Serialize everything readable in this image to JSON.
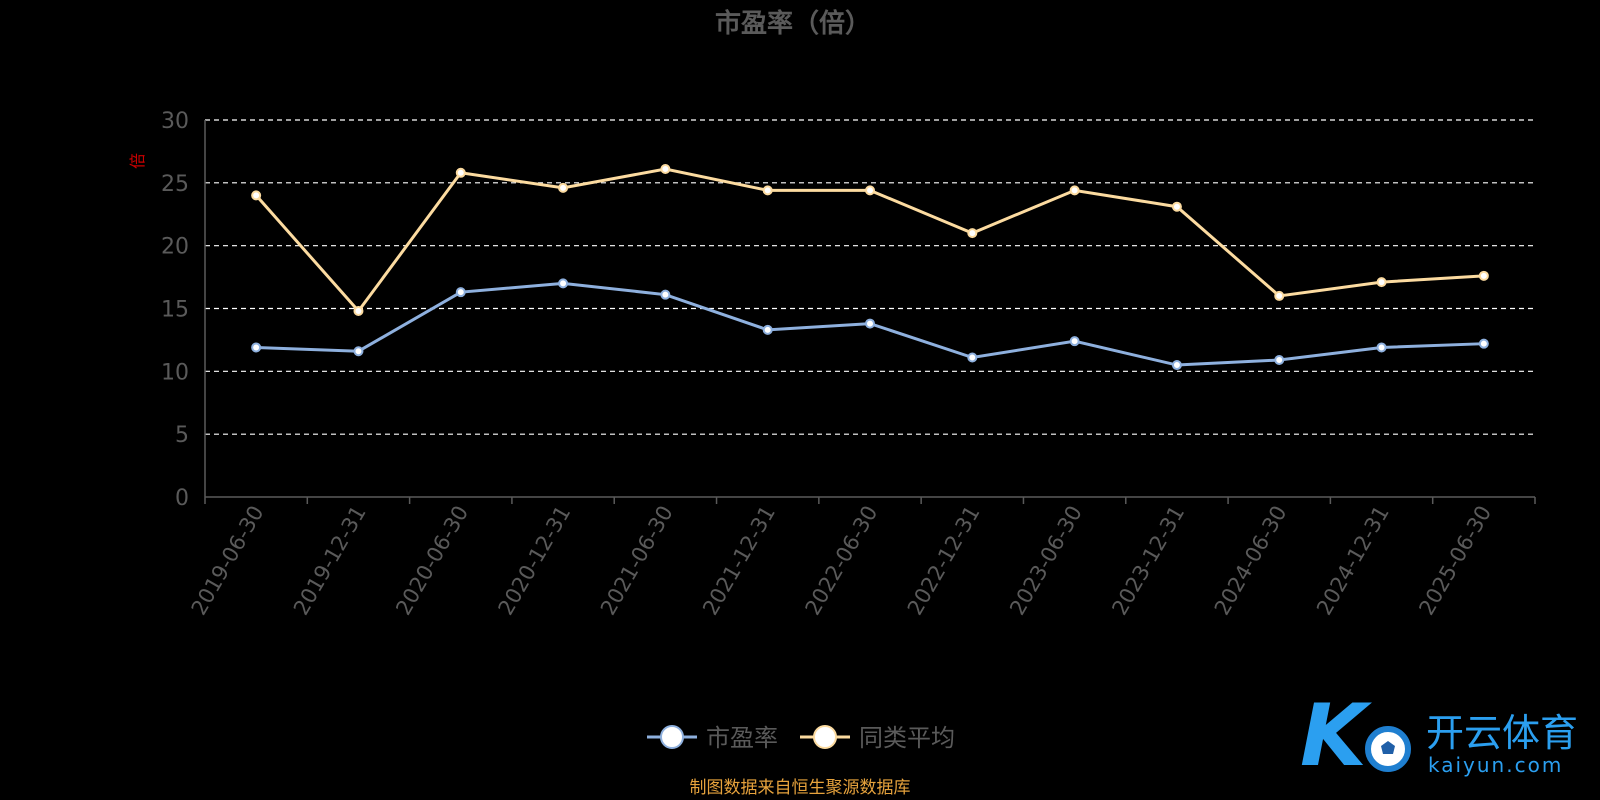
{
  "chart_data": {
    "type": "line",
    "title": "市盈率（倍）",
    "ylabel": "倍",
    "xlabel": "",
    "ylim": [
      0,
      30
    ],
    "yticks": [
      0,
      5,
      10,
      15,
      20,
      25,
      30
    ],
    "grid": true,
    "categories": [
      "2019-06-30",
      "2019-12-31",
      "2020-06-30",
      "2020-12-31",
      "2021-06-30",
      "2021-12-31",
      "2022-06-30",
      "2022-12-31",
      "2023-06-30",
      "2023-12-31",
      "2024-06-30",
      "2024-12-31",
      "2025-06-30"
    ],
    "series": [
      {
        "name": "市盈率",
        "color": "#8eb0de",
        "values": [
          11.9,
          11.6,
          16.3,
          17.0,
          16.1,
          13.3,
          13.8,
          11.1,
          12.4,
          10.5,
          10.9,
          11.9,
          12.2
        ]
      },
      {
        "name": "同类平均",
        "color": "#fcdba0",
        "values": [
          24.0,
          14.8,
          25.8,
          24.6,
          26.1,
          24.4,
          24.4,
          21.0,
          24.4,
          23.1,
          16.0,
          17.1,
          17.6
        ]
      }
    ],
    "legend_position": "bottom"
  },
  "footer": {
    "source": "制图数据来自恒生聚源数据库"
  },
  "logo": {
    "text_cn": "开云体育",
    "text_en": "kaiyun.com"
  },
  "colors": {
    "axis_text": "#5a5a5a",
    "grid": "#ffffff",
    "ylabel": "#cc0000",
    "source": "#e6a23c",
    "logo": "#2b9ff0"
  }
}
